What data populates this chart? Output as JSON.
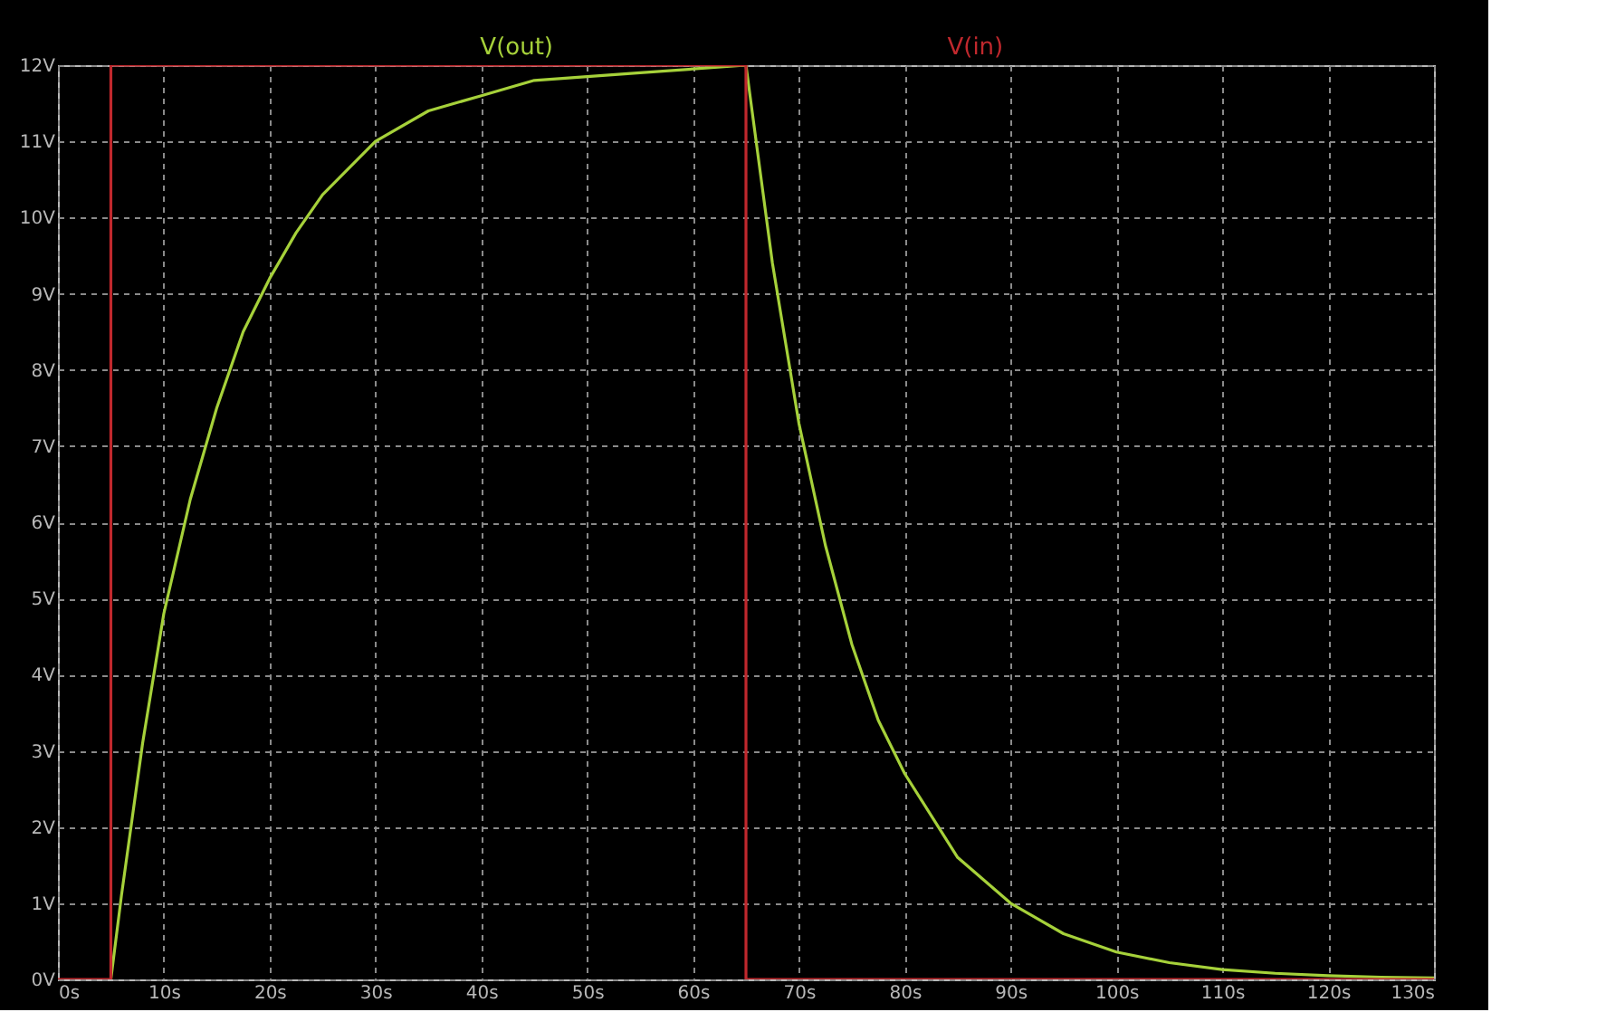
{
  "chart_data": {
    "type": "line",
    "series": [
      {
        "name": "V(out)",
        "color": "#a6d13a",
        "x": [
          5,
          6,
          7,
          8,
          10,
          12.5,
          15,
          17.5,
          20,
          22.5,
          25,
          30,
          35,
          40,
          45,
          50,
          55,
          60,
          65
        ],
        "values": [
          0,
          1.1,
          2.1,
          3.1,
          4.8,
          6.3,
          7.5,
          8.5,
          9.2,
          9.8,
          10.3,
          11.0,
          11.4,
          11.6,
          11.8,
          11.85,
          11.9,
          11.95,
          12
        ]
      },
      {
        "color": "#a6d13a",
        "x": [
          65,
          67.5,
          70,
          72.5,
          75,
          77.5,
          80,
          85,
          90,
          95,
          100,
          105,
          110,
          115,
          120,
          125,
          130
        ],
        "values": [
          12,
          9.4,
          7.3,
          5.7,
          4.4,
          3.4,
          2.7,
          1.6,
          1.0,
          0.6,
          0.36,
          0.22,
          0.13,
          0.08,
          0.05,
          0.03,
          0.02
        ]
      },
      {
        "name": "V(in)",
        "color": "#c0282d",
        "x": [
          0,
          5,
          5,
          65,
          65,
          130
        ],
        "values": [
          0,
          0,
          12,
          12,
          0,
          0
        ]
      }
    ],
    "xlim": [
      0,
      130
    ],
    "xticks": [
      {
        "value": 0,
        "label": "0s"
      },
      {
        "value": 10,
        "label": "10s"
      },
      {
        "value": 20,
        "label": "20s"
      },
      {
        "value": 30,
        "label": "30s"
      },
      {
        "value": 40,
        "label": "40s"
      },
      {
        "value": 50,
        "label": "50s"
      },
      {
        "value": 60,
        "label": "60s"
      },
      {
        "value": 70,
        "label": "70s"
      },
      {
        "value": 80,
        "label": "80s"
      },
      {
        "value": 90,
        "label": "90s"
      },
      {
        "value": 100,
        "label": "100s"
      },
      {
        "value": 110,
        "label": "110s"
      },
      {
        "value": 120,
        "label": "120s"
      },
      {
        "value": 130,
        "label": "130s"
      }
    ],
    "ylim": [
      0,
      12
    ],
    "yticks": [
      {
        "value": 0,
        "label": "0V"
      },
      {
        "value": 1,
        "label": "1V"
      },
      {
        "value": 2,
        "label": "2V"
      },
      {
        "value": 3,
        "label": "3V"
      },
      {
        "value": 4,
        "label": "4V"
      },
      {
        "value": 5,
        "label": "5V"
      },
      {
        "value": 6,
        "label": "6V"
      },
      {
        "value": 7,
        "label": "7V"
      },
      {
        "value": 8,
        "label": "8V"
      },
      {
        "value": 9,
        "label": "9V"
      },
      {
        "value": 10,
        "label": "10V"
      },
      {
        "value": 11,
        "label": "11V"
      },
      {
        "value": 12,
        "label": "12V"
      }
    ],
    "grid": true,
    "legend": "top",
    "marker": "none",
    "line_style": "solid"
  }
}
